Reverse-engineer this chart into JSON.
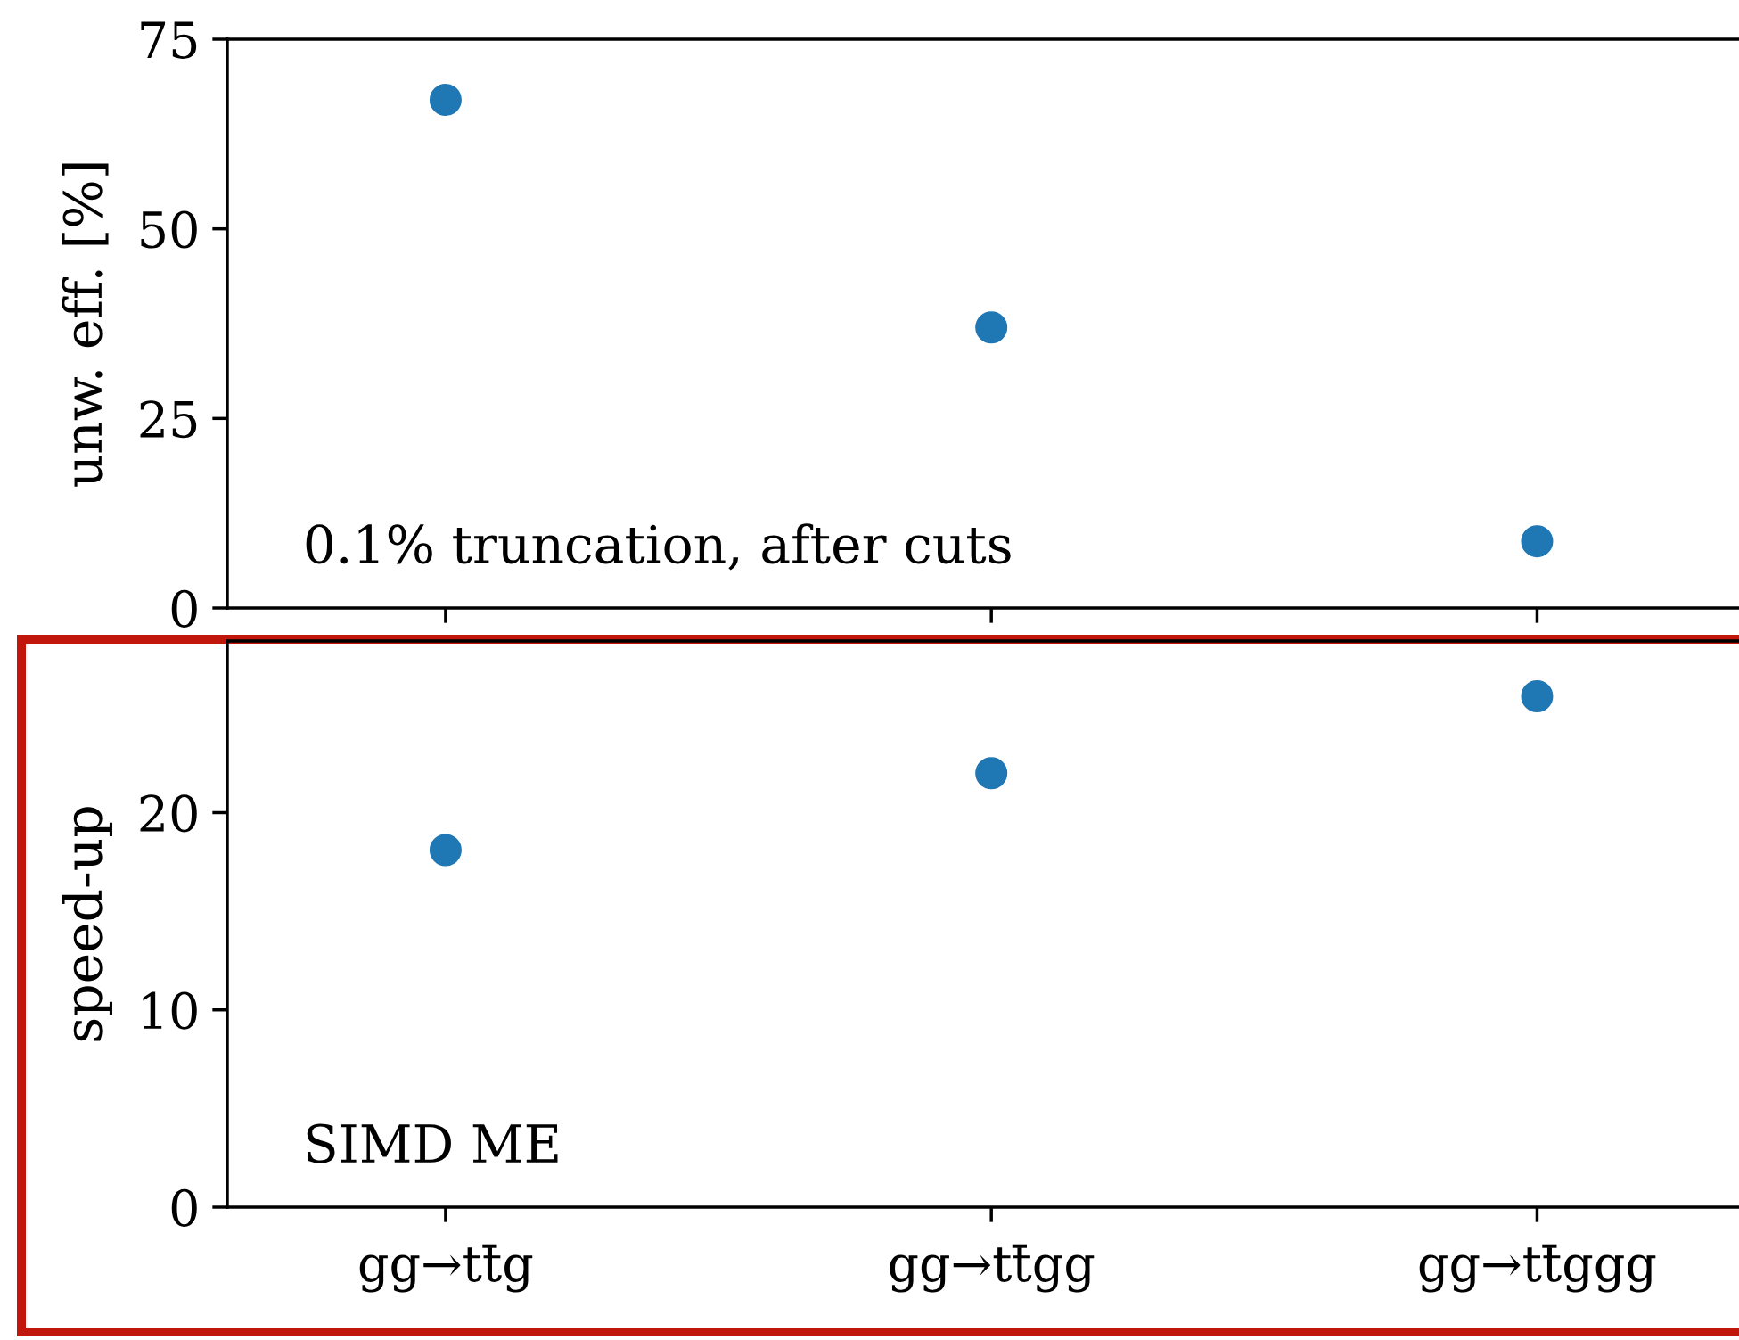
{
  "chart_data": [
    {
      "type": "scatter",
      "ylabel": "unw. eff. [%]",
      "categories": [
        null,
        null,
        null
      ],
      "series": [
        {
          "color": "#1f77b4",
          "values": [
            67,
            37,
            8.8
          ]
        }
      ],
      "ylim": [
        0,
        75
      ],
      "yticks": [
        0,
        25,
        50,
        75
      ],
      "tick_labels": "y",
      "grid": false,
      "legend": false,
      "marker": "circle",
      "annotations": [
        "0.1% truncation, after cuts"
      ]
    },
    {
      "type": "scatter",
      "ylabel": "speed-up",
      "categories": [
        "gg→tt̄g",
        "gg→tt̄gg",
        "gg→tt̄ggg"
      ],
      "series": [
        {
          "color": "#1f77b4",
          "values": [
            18.1,
            22.0,
            25.9
          ]
        }
      ],
      "ylim": [
        0,
        28.7
      ],
      "yticks": [
        0,
        10,
        20
      ],
      "grid": false,
      "legend": false,
      "marker": "circle",
      "annotations": [
        "SIMD ME"
      ]
    }
  ]
}
